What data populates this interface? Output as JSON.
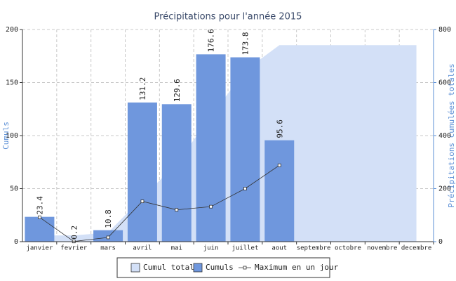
{
  "chart_data": {
    "type": "bar",
    "title": "Précipitations pour l'année 2015",
    "ylabel": "Cumuls",
    "y2label": "Précipitations cumulées totales",
    "categories": [
      "janvier",
      "fevrier",
      "mars",
      "avril",
      "mai",
      "juin",
      "juillet",
      "aout",
      "septembre",
      "octobre",
      "novembre",
      "decembre"
    ],
    "series": [
      {
        "name": "Cumul total",
        "type": "area",
        "axis": "y2",
        "color": "#d3e0f7",
        "values": [
          23.4,
          23.6,
          34.4,
          165.6,
          295.2,
          471.8,
          645.6,
          741.2,
          741.2,
          741.2,
          741.2,
          741.2
        ]
      },
      {
        "name": "Cumuls",
        "type": "bar",
        "color": "#6f97dd",
        "values": [
          23.4,
          0.2,
          10.8,
          131.2,
          129.6,
          176.6,
          173.8,
          95.6,
          null,
          null,
          null,
          null
        ]
      },
      {
        "name": "Maximum en un jour",
        "type": "line",
        "color": "#333333",
        "values": [
          23,
          0.2,
          4,
          38,
          30,
          33,
          50,
          72,
          null,
          null,
          null,
          null
        ]
      }
    ],
    "ylim": [
      0,
      200
    ],
    "yticks": [
      0,
      50,
      100,
      150,
      200
    ],
    "y2lim": [
      0,
      800
    ],
    "y2ticks": [
      0,
      200,
      400,
      600,
      800
    ],
    "grid": true,
    "legend": "bottom"
  }
}
